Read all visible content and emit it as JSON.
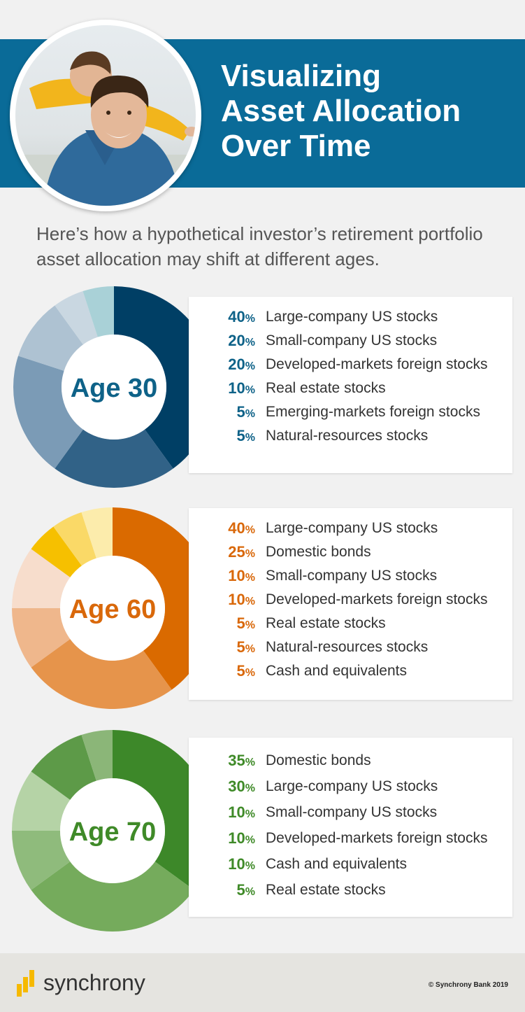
{
  "header": {
    "title_lines": [
      "Visualizing",
      "Asset Allocation",
      "Over Time"
    ]
  },
  "intro": "Here’s how a hypothetical investor’s retirement portfolio asset allocation may shift at different ages.",
  "chart_data": [
    {
      "type": "pie",
      "center_label": "Age 30",
      "accent": "#0e6288",
      "slices": [
        {
          "value": 40,
          "label": "Large-company US stocks",
          "color": "#003f65"
        },
        {
          "value": 20,
          "label": "Small-company US stocks",
          "color": "#316287"
        },
        {
          "value": 20,
          "label": "Developed-markets foreign stocks",
          "color": "#7b9bb6"
        },
        {
          "value": 10,
          "label": "Real estate stocks",
          "color": "#aec2d2"
        },
        {
          "value": 5,
          "label": "Emerging-markets foreign stocks",
          "color": "#c9d7e1"
        },
        {
          "value": 5,
          "label": "Natural-resources stocks",
          "color": "#a9d1d7"
        }
      ]
    },
    {
      "type": "pie",
      "center_label": "Age 60",
      "accent": "#d9680a",
      "slices": [
        {
          "value": 40,
          "label": "Large-company US stocks",
          "color": "#da6a00"
        },
        {
          "value": 25,
          "label": "Domestic bonds",
          "color": "#e6944b"
        },
        {
          "value": 10,
          "label": "Small-company US stocks",
          "color": "#efb78c"
        },
        {
          "value": 10,
          "label": "Developed-markets foreign stocks",
          "color": "#f7ddcc"
        },
        {
          "value": 5,
          "label": "Real estate stocks",
          "color": "#f6c000"
        },
        {
          "value": 5,
          "label": "Natural-resources stocks",
          "color": "#fad967"
        },
        {
          "value": 5,
          "label": "Cash and equivalents",
          "color": "#fcecac"
        }
      ]
    },
    {
      "type": "pie",
      "center_label": "Age 70",
      "accent": "#3f8a28",
      "slices": [
        {
          "value": 35,
          "label": "Domestic bonds",
          "color": "#3d8829"
        },
        {
          "value": 30,
          "label": "Large-company US stocks",
          "color": "#75ab5c"
        },
        {
          "value": 10,
          "label": "Small-company US stocks",
          "color": "#8fbb7c"
        },
        {
          "value": 10,
          "label": "Developed-markets foreign stocks",
          "color": "#b5d3a6"
        },
        {
          "value": 10,
          "label": "Cash and equivalents",
          "color": "#5d9a48"
        },
        {
          "value": 5,
          "label": "Real estate stocks",
          "color": "#8bb678"
        }
      ]
    }
  ],
  "footer": {
    "brand": "synchrony",
    "copyright": "© Synchrony Bank 2019",
    "logo_color": "#f6b900"
  }
}
